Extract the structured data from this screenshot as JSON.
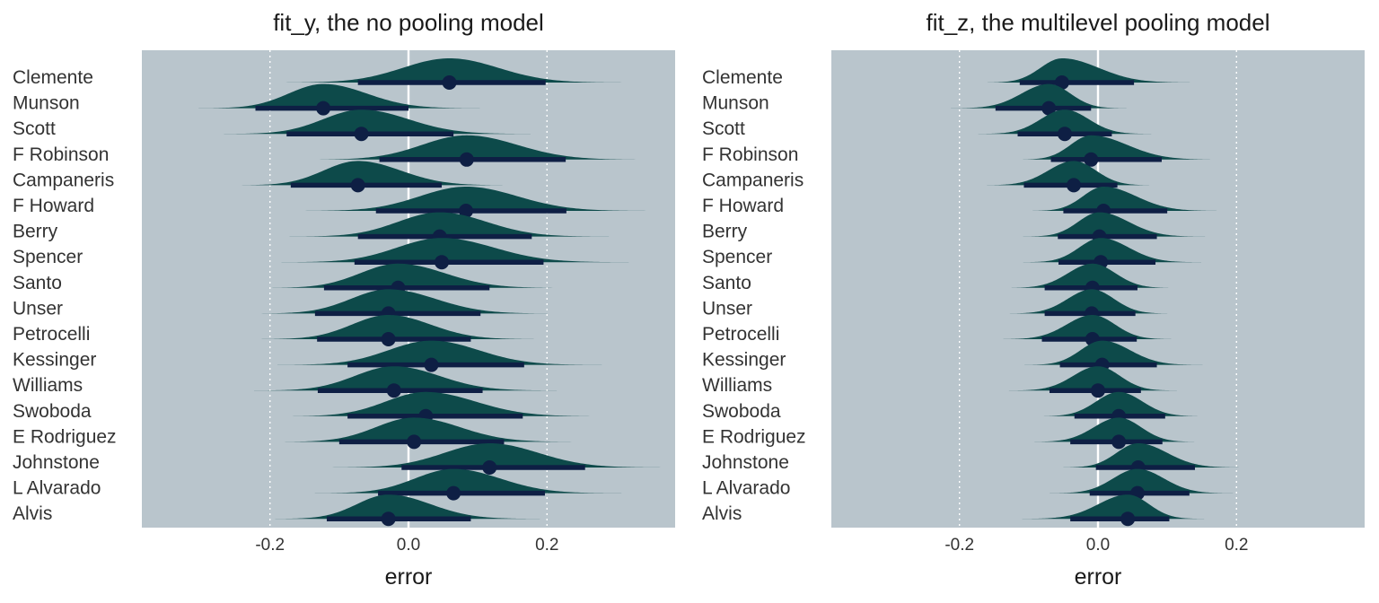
{
  "chart_data": [
    {
      "type": "halfeye",
      "title": "fit_y, the no pooling model",
      "xlabel": "error",
      "ylabel": "",
      "xlim": [
        -0.385,
        0.385
      ],
      "xticks": [
        -0.2,
        0.0,
        0.2
      ],
      "xtick_labels": [
        "-0.2",
        "0.0",
        "0.2"
      ],
      "grid": true,
      "reference_line": 0,
      "colors": {
        "panel": "#b9c5cc",
        "density": "#0d4a4a",
        "interval": "#0e1f44",
        "zero_line": "#ffffff",
        "grid": "#ffffff"
      },
      "categories": [
        "Clemente",
        "Munson",
        "Scott",
        "F Robinson",
        "Campaneris",
        "F Howard",
        "Berry",
        "Spencer",
        "Santo",
        "Unser",
        "Petrocelli",
        "Kessinger",
        "Williams",
        "Swoboda",
        "E Rodriguez",
        "Johnstone",
        "L Alvarado",
        "Alvis"
      ],
      "points": [
        {
          "name": "Clemente",
          "median": 0.059,
          "lo": -0.073,
          "hi": 0.198,
          "sd": 0.072
        },
        {
          "name": "Munson",
          "median": -0.123,
          "lo": -0.221,
          "hi": 0.0,
          "sd": 0.058
        },
        {
          "name": "Scott",
          "median": -0.068,
          "lo": -0.176,
          "hi": 0.065,
          "sd": 0.062
        },
        {
          "name": "F Robinson",
          "median": 0.084,
          "lo": -0.042,
          "hi": 0.227,
          "sd": 0.072
        },
        {
          "name": "Campaneris",
          "median": -0.073,
          "lo": -0.17,
          "hi": 0.048,
          "sd": 0.058
        },
        {
          "name": "F Howard",
          "median": 0.083,
          "lo": -0.047,
          "hi": 0.228,
          "sd": 0.072
        },
        {
          "name": "Berry",
          "median": 0.045,
          "lo": -0.073,
          "hi": 0.178,
          "sd": 0.068
        },
        {
          "name": "Spencer",
          "median": 0.048,
          "lo": -0.078,
          "hi": 0.195,
          "sd": 0.07
        },
        {
          "name": "Santo",
          "median": -0.015,
          "lo": -0.122,
          "hi": 0.117,
          "sd": 0.062
        },
        {
          "name": "Unser",
          "median": -0.029,
          "lo": -0.135,
          "hi": 0.104,
          "sd": 0.062
        },
        {
          "name": "Petrocelli",
          "median": -0.029,
          "lo": -0.132,
          "hi": 0.09,
          "sd": 0.058
        },
        {
          "name": "Kessinger",
          "median": 0.033,
          "lo": -0.088,
          "hi": 0.167,
          "sd": 0.066
        },
        {
          "name": "Williams",
          "median": -0.021,
          "lo": -0.131,
          "hi": 0.107,
          "sd": 0.062
        },
        {
          "name": "Swoboda",
          "median": 0.025,
          "lo": -0.088,
          "hi": 0.165,
          "sd": 0.066
        },
        {
          "name": "E Rodriguez",
          "median": 0.008,
          "lo": -0.1,
          "hi": 0.138,
          "sd": 0.063
        },
        {
          "name": "Johnstone",
          "median": 0.117,
          "lo": -0.01,
          "hi": 0.255,
          "sd": 0.068
        },
        {
          "name": "L Alvarado",
          "median": 0.065,
          "lo": -0.044,
          "hi": 0.197,
          "sd": 0.064
        },
        {
          "name": "Alvis",
          "median": -0.029,
          "lo": -0.118,
          "hi": 0.09,
          "sd": 0.055
        }
      ]
    },
    {
      "type": "halfeye",
      "title": "fit_z, the multilevel pooling model",
      "xlabel": "error",
      "ylabel": "",
      "xlim": [
        -0.385,
        0.385
      ],
      "xticks": [
        -0.2,
        0.0,
        0.2
      ],
      "xtick_labels": [
        "-0.2",
        "0.0",
        "0.2"
      ],
      "grid": true,
      "reference_line": 0,
      "colors": {
        "panel": "#b9c5cc",
        "density": "#0d4a4a",
        "interval": "#0e1f44",
        "zero_line": "#ffffff",
        "grid": "#ffffff"
      },
      "categories": [
        "Clemente",
        "Munson",
        "Scott",
        "F Robinson",
        "Campaneris",
        "F Howard",
        "Berry",
        "Spencer",
        "Santo",
        "Unser",
        "Petrocelli",
        "Kessinger",
        "Williams",
        "Swoboda",
        "E Rodriguez",
        "Johnstone",
        "L Alvarado",
        "Alvis"
      ],
      "points": [
        {
          "name": "Clemente",
          "median": -0.052,
          "lo": -0.113,
          "hi": 0.052,
          "sd": 0.03
        },
        {
          "name": "Munson",
          "median": -0.071,
          "lo": -0.148,
          "hi": -0.01,
          "sd": 0.033
        },
        {
          "name": "Scott",
          "median": -0.048,
          "lo": -0.116,
          "hi": 0.02,
          "sd": 0.032
        },
        {
          "name": "F Robinson",
          "median": -0.01,
          "lo": -0.068,
          "hi": 0.092,
          "sd": 0.035
        },
        {
          "name": "Campaneris",
          "median": -0.035,
          "lo": -0.107,
          "hi": 0.028,
          "sd": 0.032
        },
        {
          "name": "F Howard",
          "median": 0.008,
          "lo": -0.05,
          "hi": 0.1,
          "sd": 0.035
        },
        {
          "name": "Berry",
          "median": 0.002,
          "lo": -0.058,
          "hi": 0.085,
          "sd": 0.034
        },
        {
          "name": "Spencer",
          "median": 0.004,
          "lo": -0.057,
          "hi": 0.083,
          "sd": 0.034
        },
        {
          "name": "Santo",
          "median": -0.008,
          "lo": -0.077,
          "hi": 0.057,
          "sd": 0.033
        },
        {
          "name": "Unser",
          "median": -0.009,
          "lo": -0.077,
          "hi": 0.054,
          "sd": 0.032
        },
        {
          "name": "Petrocelli",
          "median": -0.008,
          "lo": -0.081,
          "hi": 0.056,
          "sd": 0.033
        },
        {
          "name": "Kessinger",
          "median": 0.006,
          "lo": -0.055,
          "hi": 0.085,
          "sd": 0.034
        },
        {
          "name": "Williams",
          "median": 0.0,
          "lo": -0.07,
          "hi": 0.062,
          "sd": 0.033
        },
        {
          "name": "Swoboda",
          "median": 0.03,
          "lo": -0.034,
          "hi": 0.097,
          "sd": 0.033
        },
        {
          "name": "E Rodriguez",
          "median": 0.03,
          "lo": -0.04,
          "hi": 0.093,
          "sd": 0.033
        },
        {
          "name": "Johnstone",
          "median": 0.058,
          "lo": -0.003,
          "hi": 0.14,
          "sd": 0.034
        },
        {
          "name": "L Alvarado",
          "median": 0.057,
          "lo": -0.012,
          "hi": 0.132,
          "sd": 0.034
        },
        {
          "name": "Alvis",
          "median": 0.043,
          "lo": -0.04,
          "hi": 0.103,
          "sd": 0.034
        }
      ]
    }
  ]
}
